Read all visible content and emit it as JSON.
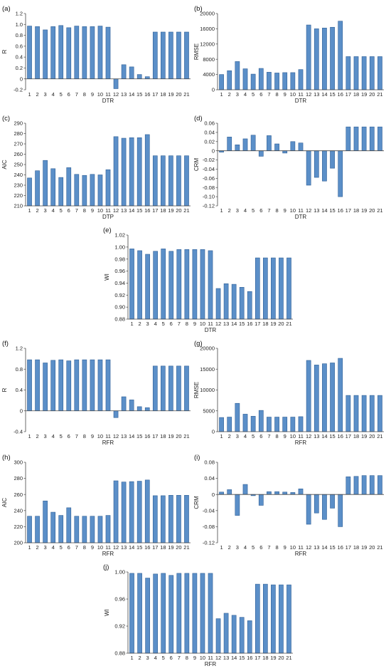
{
  "chart_data": [
    {
      "panel": "(a)",
      "type": "bar",
      "xlabel": "DTR",
      "ylabel": "R",
      "ylim": [
        -0.2,
        1.2
      ],
      "ystep": 0.2,
      "ydec": 1,
      "categories": [
        "1",
        "2",
        "3",
        "4",
        "5",
        "6",
        "7",
        "8",
        "9",
        "10",
        "11",
        "12",
        "13",
        "14",
        "15",
        "16",
        "17",
        "18",
        "19",
        "20",
        "21"
      ],
      "values": [
        0.97,
        0.96,
        0.9,
        0.96,
        0.98,
        0.94,
        0.97,
        0.96,
        0.96,
        0.97,
        0.95,
        -0.18,
        0.26,
        0.22,
        0.08,
        0.04,
        0.86,
        0.86,
        0.86,
        0.86,
        0.86
      ]
    },
    {
      "panel": "(b)",
      "type": "bar",
      "xlabel": "DTR",
      "ylabel": "RMSE",
      "ylim": [
        0,
        20000
      ],
      "ystep": 4000,
      "ydec": 0,
      "categories": [
        "1",
        "2",
        "3",
        "4",
        "5",
        "6",
        "7",
        "8",
        "9",
        "10",
        "11",
        "12",
        "13",
        "14",
        "15",
        "16",
        "17",
        "18",
        "19",
        "20",
        "21"
      ],
      "values": [
        4000,
        5000,
        7400,
        5500,
        4100,
        5600,
        4600,
        4400,
        4500,
        4500,
        5300,
        17000,
        16000,
        16200,
        16400,
        18000,
        8700,
        8700,
        8700,
        8700,
        8700
      ]
    },
    {
      "panel": "(c)",
      "type": "bar",
      "xlabel": "DTP",
      "ylabel": "AIC",
      "ylim": [
        210,
        290
      ],
      "ystep": 10,
      "ydec": 0,
      "categories": [
        "1",
        "2",
        "3",
        "4",
        "5",
        "6",
        "7",
        "8",
        "9",
        "10",
        "11",
        "12",
        "13",
        "14",
        "15",
        "16",
        "17",
        "18",
        "19",
        "20",
        "21"
      ],
      "values": [
        237,
        244,
        254,
        246,
        237.5,
        247,
        240.5,
        239.5,
        240.5,
        240,
        245,
        277,
        275.5,
        276,
        276,
        279,
        258.5,
        258.5,
        258.5,
        258.5,
        258.5
      ]
    },
    {
      "panel": "(d)",
      "type": "bar",
      "xlabel": "DTR",
      "ylabel": "CRM",
      "ylim": [
        -0.12,
        0.06
      ],
      "ystep": 0.02,
      "ydec": 2,
      "categories": [
        "1",
        "2",
        "3",
        "4",
        "5",
        "6",
        "7",
        "8",
        "9",
        "10",
        "11",
        "12",
        "13",
        "14",
        "15",
        "16",
        "17",
        "18",
        "19",
        "20",
        "21"
      ],
      "values": [
        -0.003,
        0.03,
        0.013,
        0.026,
        0.034,
        -0.012,
        0.033,
        0.015,
        -0.005,
        0.02,
        0.017,
        -0.075,
        -0.058,
        -0.066,
        -0.038,
        -0.1,
        0.052,
        0.052,
        0.052,
        0.052,
        0.052
      ]
    },
    {
      "panel": "(e)",
      "type": "bar",
      "xlabel": "DTR",
      "ylabel": "WI",
      "ylim": [
        0.88,
        1.02
      ],
      "ystep": 0.02,
      "ydec": 2,
      "categories": [
        "1",
        "2",
        "3",
        "4",
        "5",
        "6",
        "7",
        "8",
        "9",
        "10",
        "11",
        "12",
        "13",
        "14",
        "15",
        "16",
        "17",
        "18",
        "19",
        "20",
        "21"
      ],
      "values": [
        0.997,
        0.994,
        0.988,
        0.993,
        0.997,
        0.993,
        0.996,
        0.996,
        0.996,
        0.996,
        0.994,
        0.931,
        0.939,
        0.938,
        0.933,
        0.926,
        0.982,
        0.982,
        0.982,
        0.982,
        0.982
      ]
    },
    {
      "panel": "(f)",
      "type": "bar",
      "xlabel": "RFR",
      "ylabel": "R",
      "ylim": [
        -0.4,
        1.2
      ],
      "ystep": 0.4,
      "ydec": 1,
      "categories": [
        "1",
        "2",
        "3",
        "4",
        "5",
        "6",
        "7",
        "8",
        "9",
        "10",
        "11",
        "12",
        "13",
        "14",
        "15",
        "16",
        "17",
        "18",
        "19",
        "20",
        "21"
      ],
      "values": [
        0.98,
        0.98,
        0.92,
        0.97,
        0.98,
        0.96,
        0.98,
        0.98,
        0.98,
        0.98,
        0.98,
        -0.13,
        0.27,
        0.21,
        0.08,
        0.06,
        0.86,
        0.86,
        0.86,
        0.86,
        0.86
      ]
    },
    {
      "panel": "(g)",
      "type": "bar",
      "xlabel": "RFR",
      "ylabel": "RMSE",
      "ylim": [
        0,
        20000
      ],
      "ystep": 5000,
      "ydec": 0,
      "categories": [
        "1",
        "2",
        "3",
        "4",
        "5",
        "6",
        "7",
        "8",
        "9",
        "10",
        "11",
        "12",
        "13",
        "14",
        "15",
        "16",
        "17",
        "18",
        "19",
        "20",
        "21"
      ],
      "values": [
        3400,
        3500,
        6800,
        4200,
        3700,
        5100,
        3500,
        3500,
        3500,
        3500,
        3600,
        17100,
        16000,
        16300,
        16500,
        17600,
        8700,
        8700,
        8700,
        8700,
        8700
      ]
    },
    {
      "panel": "(h)",
      "type": "bar",
      "xlabel": "RFR",
      "ylabel": "AIC",
      "ylim": [
        200,
        300
      ],
      "ystep": 20,
      "ydec": 0,
      "categories": [
        "1",
        "2",
        "3",
        "4",
        "5",
        "6",
        "7",
        "8",
        "9",
        "10",
        "11",
        "12",
        "13",
        "14",
        "15",
        "16",
        "17",
        "18",
        "19",
        "20",
        "21"
      ],
      "values": [
        233,
        233,
        252,
        238,
        234,
        243.5,
        233,
        233,
        233,
        233,
        234,
        277,
        275.5,
        276,
        276.5,
        278,
        258.5,
        258.5,
        259,
        259,
        259
      ]
    },
    {
      "panel": "(i)",
      "type": "bar",
      "xlabel": "RFR",
      "ylabel": "CRM",
      "ylim": [
        -0.12,
        0.08
      ],
      "ystep": 0.04,
      "ydec": 2,
      "categories": [
        "1",
        "2",
        "3",
        "4",
        "5",
        "6",
        "7",
        "8",
        "9",
        "10",
        "11",
        "12",
        "13",
        "14",
        "15",
        "16",
        "17",
        "18",
        "19",
        "20",
        "21"
      ],
      "values": [
        0.006,
        0.012,
        -0.052,
        0.025,
        -0.003,
        -0.027,
        0.007,
        0.007,
        0.006,
        0.005,
        0.014,
        -0.074,
        -0.046,
        -0.062,
        -0.034,
        -0.08,
        0.044,
        0.045,
        0.047,
        0.047,
        0.047
      ]
    },
    {
      "panel": "(j)",
      "type": "bar",
      "xlabel": "RFR",
      "ylabel": "WI",
      "ylim": [
        0.88,
        1
      ],
      "ystep": 0.04,
      "ydec": 2,
      "categories": [
        "1",
        "2",
        "3",
        "4",
        "5",
        "6",
        "7",
        "8",
        "9",
        "10",
        "11",
        "12",
        "13",
        "14",
        "15",
        "16",
        "17",
        "18",
        "19",
        "20",
        "21"
      ],
      "values": [
        0.998,
        0.998,
        0.991,
        0.997,
        0.998,
        0.995,
        0.998,
        0.998,
        0.998,
        0.998,
        0.998,
        0.931,
        0.939,
        0.936,
        0.933,
        0.928,
        0.982,
        0.982,
        0.981,
        0.981,
        0.981
      ]
    }
  ],
  "colors": {
    "bar_fill": "#5b8fc8",
    "bar_stroke": "#2f5f96",
    "axis": "#444444"
  }
}
